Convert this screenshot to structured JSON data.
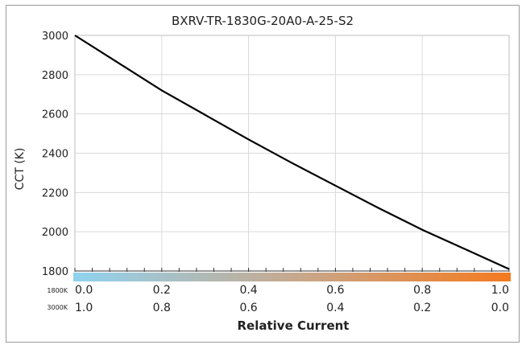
{
  "chart_data": {
    "type": "line",
    "title": "BXRV-TR-1830G-20A0-A-25-S2",
    "xlabel": "Relative Current",
    "ylabel": "CCT (K)",
    "xlim": [
      0,
      1
    ],
    "ylim": [
      1800,
      3000
    ],
    "grid": true,
    "x_ticks_top": [
      "0.0",
      "0.2",
      "0.4",
      "0.6",
      "0.8",
      "1.0"
    ],
    "x_ticks_bottom": [
      "1.0",
      "0.8",
      "0.6",
      "0.4",
      "0.2",
      "0.0"
    ],
    "row_labels": [
      "1800K",
      "3000K"
    ],
    "y_ticks": [
      "3000",
      "2800",
      "2600",
      "2400",
      "2200",
      "2000",
      "1800"
    ],
    "y_tick_values": [
      3000,
      2800,
      2600,
      2400,
      2200,
      2000,
      1800
    ],
    "gradient_colors": [
      "#8fd3f0",
      "#c6a98f",
      "#f47a1f"
    ],
    "line_color": "#000000",
    "series": [
      {
        "x": [
          0.0,
          0.1,
          0.2,
          0.3,
          0.4,
          0.5,
          0.6,
          0.7,
          0.8,
          0.9,
          1.0
        ],
        "values": [
          3000,
          2860,
          2720,
          2595,
          2470,
          2350,
          2235,
          2120,
          2010,
          1910,
          1810
        ]
      }
    ]
  }
}
